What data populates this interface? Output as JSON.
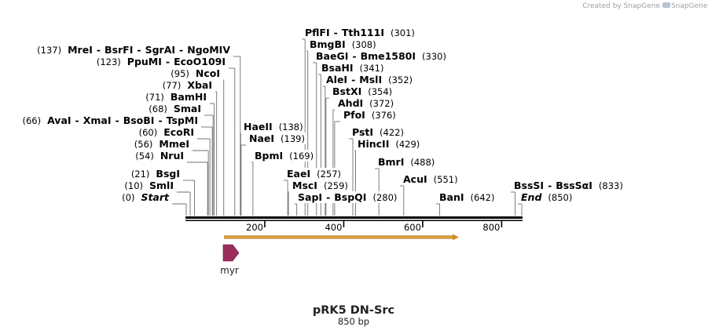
{
  "credit": "Created by SnapGene",
  "title": "pRK5 DN-Src",
  "subtitle": "850 bp",
  "axis_ticks": [
    "200",
    "400",
    "600",
    "800"
  ],
  "feature": {
    "label": "myr"
  },
  "sites": [
    {
      "id": "start",
      "pos": 0,
      "parts": [
        {
          "t": "(0)",
          "k": "num"
        },
        {
          "t": "Start",
          "k": "it"
        }
      ]
    },
    {
      "id": "smli",
      "pos": 10,
      "parts": [
        {
          "t": "(10)",
          "k": "num"
        },
        {
          "t": "SmlI",
          "k": "name"
        }
      ]
    },
    {
      "id": "bsgi",
      "pos": 21,
      "parts": [
        {
          "t": "(21)",
          "k": "num"
        },
        {
          "t": "BsgI",
          "k": "name"
        }
      ]
    },
    {
      "id": "nrui",
      "pos": 54,
      "parts": [
        {
          "t": "(54)",
          "k": "num"
        },
        {
          "t": "NruI",
          "k": "name"
        }
      ]
    },
    {
      "id": "mmei",
      "pos": 56,
      "parts": [
        {
          "t": "(56)",
          "k": "num"
        },
        {
          "t": "MmeI",
          "k": "name"
        }
      ]
    },
    {
      "id": "ecori",
      "pos": 60,
      "parts": [
        {
          "t": "(60)",
          "k": "num"
        },
        {
          "t": "EcoRI",
          "k": "name"
        }
      ]
    },
    {
      "id": "avai",
      "pos": 66,
      "parts": [
        {
          "t": "(66)",
          "k": "num"
        },
        {
          "t": "AvaI",
          "k": "name"
        },
        {
          "t": "-",
          "k": "sep"
        },
        {
          "t": "XmaI",
          "k": "name"
        },
        {
          "t": "-",
          "k": "sep"
        },
        {
          "t": "BsoBI",
          "k": "name"
        },
        {
          "t": "-",
          "k": "sep"
        },
        {
          "t": "TspMI",
          "k": "name"
        }
      ]
    },
    {
      "id": "smai",
      "pos": 68,
      "parts": [
        {
          "t": "(68)",
          "k": "num"
        },
        {
          "t": "SmaI",
          "k": "name"
        }
      ]
    },
    {
      "id": "bamhi",
      "pos": 71,
      "parts": [
        {
          "t": "(71)",
          "k": "num"
        },
        {
          "t": "BamHI",
          "k": "name"
        }
      ]
    },
    {
      "id": "xbai",
      "pos": 77,
      "parts": [
        {
          "t": "(77)",
          "k": "num"
        },
        {
          "t": "XbaI",
          "k": "name"
        }
      ]
    },
    {
      "id": "ncoi",
      "pos": 95,
      "parts": [
        {
          "t": "(95)",
          "k": "num"
        },
        {
          "t": "NcoI",
          "k": "name"
        }
      ]
    },
    {
      "id": "ppumi",
      "pos": 123,
      "parts": [
        {
          "t": "(123)",
          "k": "num"
        },
        {
          "t": "PpuMI",
          "k": "name"
        },
        {
          "t": "-",
          "k": "sep"
        },
        {
          "t": "EcoO109I",
          "k": "name"
        }
      ]
    },
    {
      "id": "mrei",
      "pos": 137,
      "parts": [
        {
          "t": "(137)",
          "k": "num"
        },
        {
          "t": "MreI",
          "k": "name"
        },
        {
          "t": "-",
          "k": "sep"
        },
        {
          "t": "BsrFI",
          "k": "name"
        },
        {
          "t": "-",
          "k": "sep"
        },
        {
          "t": "SgrAI",
          "k": "name"
        },
        {
          "t": "-",
          "k": "sep"
        },
        {
          "t": "NgoMIV",
          "k": "name"
        }
      ]
    },
    {
      "id": "haeii",
      "pos": 138,
      "parts": [
        {
          "t": "HaeII",
          "k": "name"
        },
        {
          "t": "(138)",
          "k": "num"
        }
      ]
    },
    {
      "id": "naei",
      "pos": 139,
      "parts": [
        {
          "t": "NaeI",
          "k": "name"
        },
        {
          "t": "(139)",
          "k": "num"
        }
      ]
    },
    {
      "id": "bpmi",
      "pos": 169,
      "parts": [
        {
          "t": "BpmI",
          "k": "name"
        },
        {
          "t": "(169)",
          "k": "num"
        }
      ]
    },
    {
      "id": "eaei",
      "pos": 257,
      "parts": [
        {
          "t": "EaeI",
          "k": "name"
        },
        {
          "t": "(257)",
          "k": "num"
        }
      ]
    },
    {
      "id": "msci",
      "pos": 259,
      "parts": [
        {
          "t": "MscI",
          "k": "name"
        },
        {
          "t": "(259)",
          "k": "num"
        }
      ]
    },
    {
      "id": "sapi",
      "pos": 280,
      "parts": [
        {
          "t": "SapI",
          "k": "name"
        },
        {
          "t": "-",
          "k": "sep"
        },
        {
          "t": "BspQI",
          "k": "name"
        },
        {
          "t": "(280)",
          "k": "num"
        }
      ]
    },
    {
      "id": "pflfi",
      "pos": 301,
      "parts": [
        {
          "t": "PflFI",
          "k": "name"
        },
        {
          "t": "-",
          "k": "sep"
        },
        {
          "t": "Tth111I",
          "k": "name"
        },
        {
          "t": "(301)",
          "k": "num"
        }
      ]
    },
    {
      "id": "bmgbi",
      "pos": 308,
      "parts": [
        {
          "t": "BmgBI",
          "k": "name"
        },
        {
          "t": "(308)",
          "k": "num"
        }
      ]
    },
    {
      "id": "baegi",
      "pos": 330,
      "parts": [
        {
          "t": "BaeGI",
          "k": "name"
        },
        {
          "t": "-",
          "k": "sep"
        },
        {
          "t": "Bme1580I",
          "k": "name"
        },
        {
          "t": "(330)",
          "k": "num"
        }
      ]
    },
    {
      "id": "bsahi",
      "pos": 341,
      "parts": [
        {
          "t": "BsaHI",
          "k": "name"
        },
        {
          "t": "(341)",
          "k": "num"
        }
      ]
    },
    {
      "id": "alei",
      "pos": 352,
      "parts": [
        {
          "t": "AleI",
          "k": "name"
        },
        {
          "t": "-",
          "k": "sep"
        },
        {
          "t": "MslI",
          "k": "name"
        },
        {
          "t": "(352)",
          "k": "num"
        }
      ]
    },
    {
      "id": "bstxi",
      "pos": 354,
      "parts": [
        {
          "t": "BstXI",
          "k": "name"
        },
        {
          "t": "(354)",
          "k": "num"
        }
      ]
    },
    {
      "id": "ahdi",
      "pos": 372,
      "parts": [
        {
          "t": "AhdI",
          "k": "name"
        },
        {
          "t": "(372)",
          "k": "num"
        }
      ]
    },
    {
      "id": "pfoi",
      "pos": 376,
      "parts": [
        {
          "t": "PfoI",
          "k": "name"
        },
        {
          "t": "(376)",
          "k": "num"
        }
      ]
    },
    {
      "id": "psti",
      "pos": 422,
      "parts": [
        {
          "t": "PstI",
          "k": "name"
        },
        {
          "t": "(422)",
          "k": "num"
        }
      ]
    },
    {
      "id": "hincii",
      "pos": 429,
      "parts": [
        {
          "t": "HincII",
          "k": "name"
        },
        {
          "t": "(429)",
          "k": "num"
        }
      ]
    },
    {
      "id": "bmri",
      "pos": 488,
      "parts": [
        {
          "t": "BmrI",
          "k": "name"
        },
        {
          "t": "(488)",
          "k": "num"
        }
      ]
    },
    {
      "id": "acui",
      "pos": 551,
      "parts": [
        {
          "t": "AcuI",
          "k": "name"
        },
        {
          "t": "(551)",
          "k": "num"
        }
      ]
    },
    {
      "id": "bani",
      "pos": 642,
      "parts": [
        {
          "t": "BanI",
          "k": "name"
        },
        {
          "t": "(642)",
          "k": "num"
        }
      ]
    },
    {
      "id": "bsssi",
      "pos": 833,
      "parts": [
        {
          "t": "BssSI",
          "k": "name"
        },
        {
          "t": "-",
          "k": "sep"
        },
        {
          "t": "BssSαI",
          "k": "name"
        },
        {
          "t": "(833)",
          "k": "num"
        }
      ]
    },
    {
      "id": "end",
      "pos": 850,
      "parts": [
        {
          "t": "End",
          "k": "it"
        },
        {
          "t": "(850)",
          "k": "num"
        }
      ]
    }
  ],
  "colors": {
    "feature_arrow": "#9b2d5c",
    "orf_arrow": "#e8a33a",
    "backbone": "#000000",
    "leader": "#6f6f6f"
  }
}
